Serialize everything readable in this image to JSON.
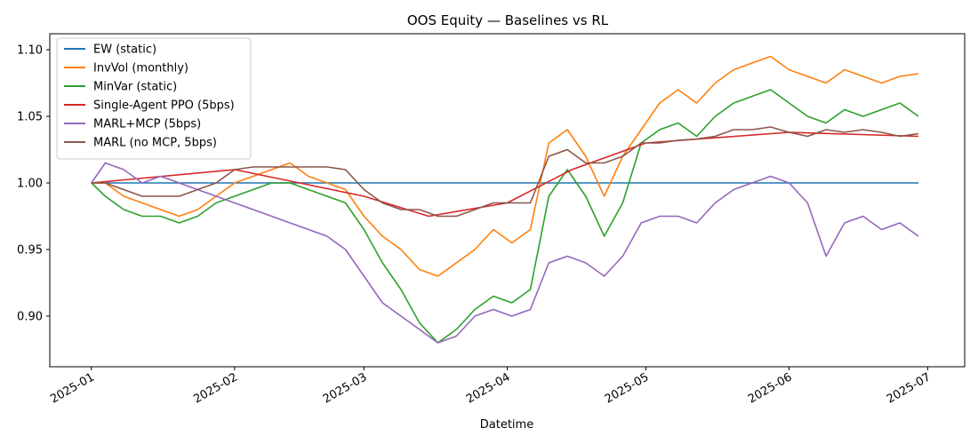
{
  "chart_data": {
    "type": "line",
    "title": "OOS Equity — Baselines vs RL",
    "xlabel": "Datetime",
    "ylabel": "",
    "xlim": [
      "2024-12-23",
      "2025-07-09"
    ],
    "ylim": [
      0.862,
      1.112
    ],
    "x_ticks": [
      "2025-01",
      "2025-02",
      "2025-03",
      "2025-04",
      "2025-05",
      "2025-06",
      "2025-07"
    ],
    "x_tick_dates": [
      "2025-01-01",
      "2025-02-01",
      "2025-03-01",
      "2025-04-01",
      "2025-05-01",
      "2025-06-01",
      "2025-07-01"
    ],
    "y_ticks": [
      "0.90",
      "0.95",
      "1.00",
      "1.05",
      "1.10"
    ],
    "y_tick_values": [
      0.9,
      0.95,
      1.0,
      1.05,
      1.1
    ],
    "grid": false,
    "legend_position": "top-left",
    "series": [
      {
        "name": "EW (static)",
        "color": "#1f77b4",
        "x": [
          "2025-01-01",
          "2025-02-01",
          "2025-03-01",
          "2025-04-01",
          "2025-05-01",
          "2025-06-01",
          "2025-06-29"
        ],
        "y": [
          1.0,
          1.0,
          1.0,
          1.0,
          1.0,
          1.0,
          1.0
        ]
      },
      {
        "name": "InvVol (monthly)",
        "color": "#ff7f0e",
        "x": [
          "2025-01-01",
          "2025-01-04",
          "2025-01-08",
          "2025-01-12",
          "2025-01-16",
          "2025-01-20",
          "2025-01-24",
          "2025-01-28",
          "2025-02-01",
          "2025-02-05",
          "2025-02-09",
          "2025-02-13",
          "2025-02-17",
          "2025-02-21",
          "2025-02-25",
          "2025-03-01",
          "2025-03-05",
          "2025-03-09",
          "2025-03-13",
          "2025-03-17",
          "2025-03-21",
          "2025-03-25",
          "2025-03-29",
          "2025-04-02",
          "2025-04-06",
          "2025-04-10",
          "2025-04-14",
          "2025-04-18",
          "2025-04-22",
          "2025-04-26",
          "2025-04-30",
          "2025-05-04",
          "2025-05-08",
          "2025-05-12",
          "2025-05-16",
          "2025-05-20",
          "2025-05-24",
          "2025-05-28",
          "2025-06-01",
          "2025-06-05",
          "2025-06-09",
          "2025-06-13",
          "2025-06-17",
          "2025-06-21",
          "2025-06-25",
          "2025-06-29"
        ],
        "y": [
          1.0,
          1.0,
          0.99,
          0.985,
          0.98,
          0.975,
          0.98,
          0.99,
          1.0,
          1.005,
          1.01,
          1.015,
          1.005,
          1.0,
          0.995,
          0.975,
          0.96,
          0.95,
          0.935,
          0.93,
          0.94,
          0.95,
          0.965,
          0.955,
          0.965,
          1.03,
          1.04,
          1.02,
          0.99,
          1.02,
          1.04,
          1.06,
          1.07,
          1.06,
          1.075,
          1.085,
          1.09,
          1.095,
          1.085,
          1.08,
          1.075,
          1.085,
          1.08,
          1.075,
          1.08,
          1.082
        ]
      },
      {
        "name": "MinVar (static)",
        "color": "#2ca02c",
        "x": [
          "2025-01-01",
          "2025-01-04",
          "2025-01-08",
          "2025-01-12",
          "2025-01-16",
          "2025-01-20",
          "2025-01-24",
          "2025-01-28",
          "2025-02-01",
          "2025-02-05",
          "2025-02-09",
          "2025-02-13",
          "2025-02-17",
          "2025-02-21",
          "2025-02-25",
          "2025-03-01",
          "2025-03-05",
          "2025-03-09",
          "2025-03-13",
          "2025-03-17",
          "2025-03-21",
          "2025-03-25",
          "2025-03-29",
          "2025-04-02",
          "2025-04-06",
          "2025-04-10",
          "2025-04-14",
          "2025-04-18",
          "2025-04-22",
          "2025-04-26",
          "2025-04-30",
          "2025-05-04",
          "2025-05-08",
          "2025-05-12",
          "2025-05-16",
          "2025-05-20",
          "2025-05-24",
          "2025-05-28",
          "2025-06-01",
          "2025-06-05",
          "2025-06-09",
          "2025-06-13",
          "2025-06-17",
          "2025-06-21",
          "2025-06-25",
          "2025-06-29"
        ],
        "y": [
          1.0,
          0.99,
          0.98,
          0.975,
          0.975,
          0.97,
          0.975,
          0.985,
          0.99,
          0.995,
          1.0,
          1.0,
          0.995,
          0.99,
          0.985,
          0.965,
          0.94,
          0.92,
          0.895,
          0.88,
          0.89,
          0.905,
          0.915,
          0.91,
          0.92,
          0.99,
          1.01,
          0.99,
          0.96,
          0.985,
          1.03,
          1.04,
          1.045,
          1.035,
          1.05,
          1.06,
          1.065,
          1.07,
          1.06,
          1.05,
          1.045,
          1.055,
          1.05,
          1.055,
          1.06,
          1.05
        ]
      },
      {
        "name": "Single-Agent PPO (5bps)",
        "color": "#d62728",
        "x": [
          "2025-01-01",
          "2025-02-01",
          "2025-03-01",
          "2025-03-15",
          "2025-04-01",
          "2025-04-15",
          "2025-05-01",
          "2025-06-01",
          "2025-06-29"
        ],
        "y": [
          1.0,
          1.01,
          0.99,
          0.975,
          0.985,
          1.01,
          1.03,
          1.038,
          1.035
        ]
      },
      {
        "name": "MARL+MCP (5bps)",
        "color": "#9467bd",
        "x": [
          "2025-01-01",
          "2025-01-04",
          "2025-01-08",
          "2025-01-12",
          "2025-01-16",
          "2025-01-20",
          "2025-01-24",
          "2025-01-28",
          "2025-02-01",
          "2025-02-05",
          "2025-02-09",
          "2025-02-13",
          "2025-02-17",
          "2025-02-21",
          "2025-02-25",
          "2025-03-01",
          "2025-03-05",
          "2025-03-09",
          "2025-03-13",
          "2025-03-17",
          "2025-03-21",
          "2025-03-25",
          "2025-03-29",
          "2025-04-02",
          "2025-04-06",
          "2025-04-10",
          "2025-04-14",
          "2025-04-18",
          "2025-04-22",
          "2025-04-26",
          "2025-04-30",
          "2025-05-04",
          "2025-05-08",
          "2025-05-12",
          "2025-05-16",
          "2025-05-20",
          "2025-05-24",
          "2025-05-28",
          "2025-06-01",
          "2025-06-05",
          "2025-06-09",
          "2025-06-13",
          "2025-06-17",
          "2025-06-21",
          "2025-06-25",
          "2025-06-29"
        ],
        "y": [
          1.0,
          1.015,
          1.01,
          1.0,
          1.005,
          1.0,
          0.995,
          0.99,
          0.985,
          0.98,
          0.975,
          0.97,
          0.965,
          0.96,
          0.95,
          0.93,
          0.91,
          0.9,
          0.89,
          0.88,
          0.885,
          0.9,
          0.905,
          0.9,
          0.905,
          0.94,
          0.945,
          0.94,
          0.93,
          0.945,
          0.97,
          0.975,
          0.975,
          0.97,
          0.985,
          0.995,
          1.0,
          1.005,
          1.0,
          0.985,
          0.945,
          0.97,
          0.975,
          0.965,
          0.97,
          0.96
        ]
      },
      {
        "name": "MARL (no MCP, 5bps)",
        "color": "#8c564b",
        "x": [
          "2025-01-01",
          "2025-01-04",
          "2025-01-08",
          "2025-01-12",
          "2025-01-16",
          "2025-01-20",
          "2025-01-24",
          "2025-01-28",
          "2025-02-01",
          "2025-02-05",
          "2025-02-09",
          "2025-02-13",
          "2025-02-17",
          "2025-02-21",
          "2025-02-25",
          "2025-03-01",
          "2025-03-05",
          "2025-03-09",
          "2025-03-13",
          "2025-03-17",
          "2025-03-21",
          "2025-03-25",
          "2025-03-29",
          "2025-04-02",
          "2025-04-06",
          "2025-04-10",
          "2025-04-14",
          "2025-04-18",
          "2025-04-22",
          "2025-04-26",
          "2025-04-30",
          "2025-05-04",
          "2025-05-08",
          "2025-05-12",
          "2025-05-16",
          "2025-05-20",
          "2025-05-24",
          "2025-05-28",
          "2025-06-01",
          "2025-06-05",
          "2025-06-09",
          "2025-06-13",
          "2025-06-17",
          "2025-06-21",
          "2025-06-25",
          "2025-06-29"
        ],
        "y": [
          1.0,
          1.0,
          0.995,
          0.99,
          0.99,
          0.99,
          0.995,
          1.0,
          1.01,
          1.012,
          1.012,
          1.012,
          1.012,
          1.012,
          1.01,
          0.995,
          0.985,
          0.98,
          0.98,
          0.975,
          0.975,
          0.98,
          0.985,
          0.985,
          0.985,
          1.02,
          1.025,
          1.015,
          1.015,
          1.02,
          1.03,
          1.03,
          1.032,
          1.033,
          1.035,
          1.04,
          1.04,
          1.042,
          1.038,
          1.035,
          1.04,
          1.038,
          1.04,
          1.038,
          1.035,
          1.037
        ]
      }
    ]
  }
}
